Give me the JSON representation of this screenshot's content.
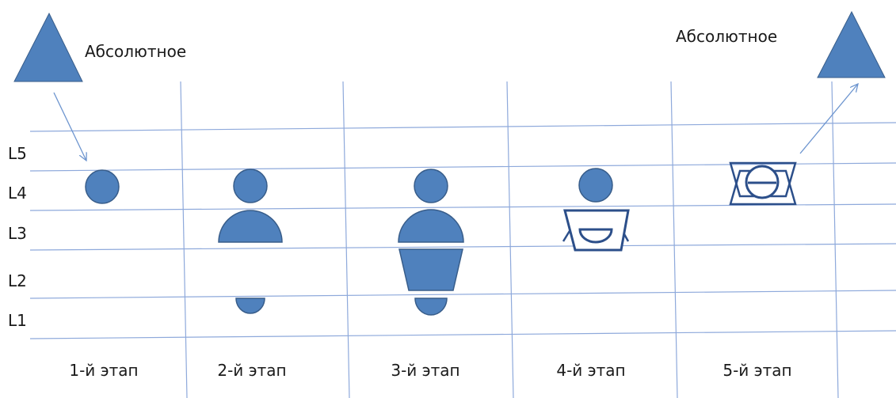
{
  "labels": {
    "absolute_left": "Абсолютное",
    "absolute_right": "Абсолютное"
  },
  "levels": [
    "L5",
    "L4",
    "L3",
    "L2",
    "L1"
  ],
  "stages": [
    "1-й этап",
    "2-й этап",
    "3-й этап",
    "4-й этап",
    "5-й этап"
  ],
  "colors": {
    "fill": "#4f81bd",
    "stroke": "#385d8a",
    "grid": "#8ea9db",
    "arrow": "#6d95cf"
  }
}
